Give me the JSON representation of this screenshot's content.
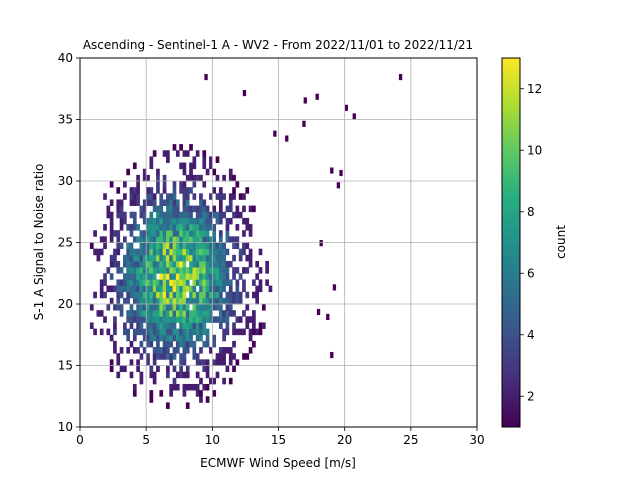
{
  "chart_data": {
    "type": "heatmap",
    "title": "Ascending - Sentinel-1 A - WV2 - From 2022/11/01 to 2022/11/21",
    "xlabel": "ECMWF Wind Speed [m/s]",
    "ylabel": "S-1 A Signal to Noise ratio",
    "xlim": [
      0,
      30
    ],
    "ylim": [
      10,
      40
    ],
    "xticks": [
      0,
      5,
      10,
      15,
      20,
      25,
      30
    ],
    "yticks": [
      10,
      15,
      20,
      25,
      30,
      35,
      40
    ],
    "grid": true,
    "bin_width_x": 0.25,
    "bin_width_y": 0.5,
    "peak": {
      "x": 7.2,
      "y": 22.0
    },
    "spread": {
      "x": 2.8,
      "y": 4.2
    },
    "colorbar": {
      "label": "count",
      "min": 1,
      "max": 13,
      "ticks": [
        2,
        4,
        6,
        8,
        10,
        12
      ],
      "colormap": "viridis"
    },
    "outliers": [
      [
        9.4,
        38.2
      ],
      [
        24.1,
        38.2
      ],
      [
        12.3,
        36.9
      ],
      [
        17.8,
        36.6
      ],
      [
        16.9,
        36.3
      ],
      [
        20.0,
        35.7
      ],
      [
        20.6,
        35.0
      ],
      [
        14.6,
        33.6
      ],
      [
        16.8,
        34.4
      ],
      [
        18.9,
        30.6
      ],
      [
        19.4,
        29.4
      ],
      [
        18.1,
        24.7
      ],
      [
        19.1,
        21.1
      ],
      [
        18.6,
        18.7
      ],
      [
        18.9,
        15.6
      ],
      [
        19.6,
        30.4
      ],
      [
        17.9,
        19.1
      ],
      [
        15.5,
        33.2
      ]
    ]
  }
}
